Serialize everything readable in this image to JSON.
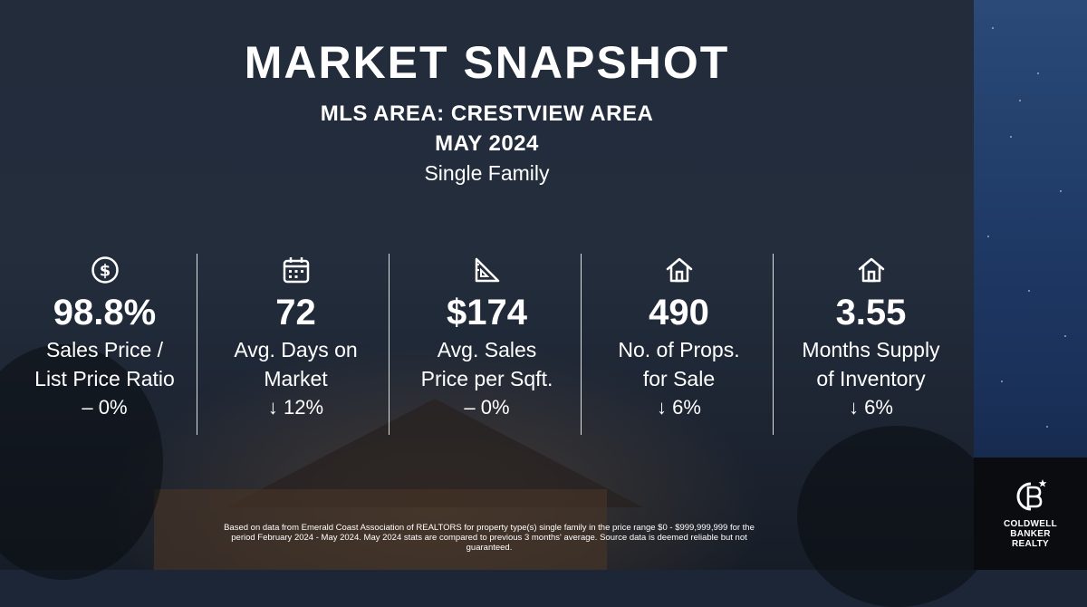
{
  "header": {
    "title": "MARKET SNAPSHOT",
    "mls_area": "MLS AREA: CRESTVIEW AREA",
    "period": "MAY 2024",
    "property_type": "Single Family"
  },
  "stats": [
    {
      "icon": "dollar-circle-icon",
      "value": "98.8%",
      "label_line1": "Sales Price /",
      "label_line2": "List Price Ratio",
      "change": "– 0%"
    },
    {
      "icon": "calendar-icon",
      "value": "72",
      "label_line1": "Avg. Days on",
      "label_line2": "Market",
      "change": "↓ 12%"
    },
    {
      "icon": "ruler-triangle-icon",
      "value": "$174",
      "label_line1": "Avg. Sales",
      "label_line2": "Price per Sqft.",
      "change": "– 0%"
    },
    {
      "icon": "house-icon",
      "value": "490",
      "label_line1": "No. of Props.",
      "label_line2": "for Sale",
      "change": "↓ 6%"
    },
    {
      "icon": "house-icon",
      "value": "3.55",
      "label_line1": "Months Supply",
      "label_line2": "of Inventory",
      "change": "↓ 6%"
    }
  ],
  "disclaimer": "Based on data from Emerald Coast Association of REALTORS for property type(s) single family in the price range $0 - $999,999,999 for the period February 2024 - May 2024. May 2024 stats are compared to previous 3 months' average. Source data is deemed reliable but not guaranteed.",
  "logo": {
    "line1": "COLDWELL",
    "line2": "BANKER",
    "line3": "REALTY"
  }
}
